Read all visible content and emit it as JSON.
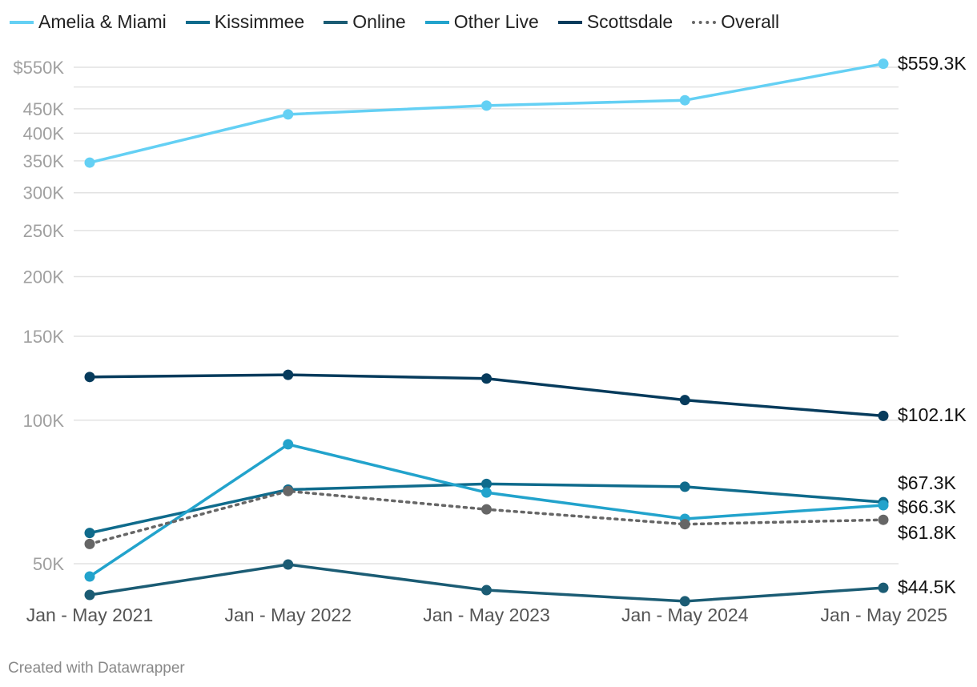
{
  "chart_data": {
    "type": "line",
    "y_scale": "log",
    "ylim": [
      40000,
      600000
    ],
    "categories": [
      "Jan - May 2021",
      "Jan - May 2022",
      "Jan - May 2023",
      "Jan - May 2024",
      "Jan - May 2025"
    ],
    "y_ticks": [
      {
        "value": 550000,
        "label": "$550K"
      },
      {
        "value": 450000,
        "label": "450K"
      },
      {
        "value": 400000,
        "label": "400K"
      },
      {
        "value": 350000,
        "label": "350K"
      },
      {
        "value": 300000,
        "label": "300K"
      },
      {
        "value": 250000,
        "label": "250K"
      },
      {
        "value": 200000,
        "label": "200K"
      },
      {
        "value": 150000,
        "label": "150K"
      },
      {
        "value": 100000,
        "label": "100K"
      },
      {
        "value": 50000,
        "label": "50K"
      }
    ],
    "extra_gridlines": [
      500000
    ],
    "grid": true,
    "legend_position": "top-left",
    "series": [
      {
        "name": "Amelia & Miami",
        "color": "#64d0f4",
        "style": "solid",
        "values": [
          347000,
          438000,
          457000,
          469000,
          559300
        ],
        "end_label": "$559.3K"
      },
      {
        "name": "Kissimmee",
        "color": "#0f6b8c",
        "style": "solid",
        "values": [
          58000,
          71500,
          73500,
          72500,
          67300
        ],
        "end_label": "$67.3K"
      },
      {
        "name": "Online",
        "color": "#1b5c74",
        "style": "solid",
        "values": [
          43000,
          49800,
          44000,
          41700,
          44500
        ],
        "end_label": "$44.5K"
      },
      {
        "name": "Other Live",
        "color": "#22a3cc",
        "style": "solid",
        "values": [
          47000,
          89000,
          70500,
          62100,
          66300
        ],
        "end_label": "$66.3K"
      },
      {
        "name": "Scottsdale",
        "color": "#063b5c",
        "style": "solid",
        "values": [
          123200,
          124500,
          122300,
          110200,
          102100
        ],
        "end_label": "$102.1K"
      },
      {
        "name": "Overall",
        "color": "#666666",
        "style": "dotted",
        "values": [
          55000,
          71000,
          65000,
          60500,
          61800
        ],
        "end_label": "$61.8K"
      }
    ]
  },
  "footer": "Created with Datawrapper"
}
